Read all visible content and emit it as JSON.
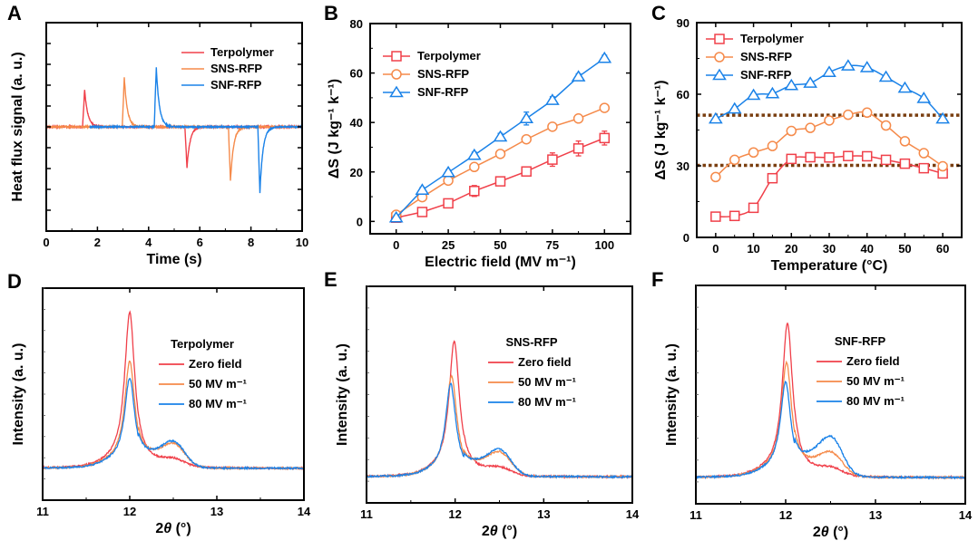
{
  "figure": {
    "colors": {
      "terpolymer": "#f0404a",
      "sns": "#f58a4a",
      "snf": "#1a82e8",
      "dotted": "#7a3f10",
      "axis": "#000000"
    }
  },
  "chart_data": [
    {
      "panel": "A",
      "type": "line",
      "title": "",
      "xlabel": "Time (s)",
      "ylabel": "Heat flux signal (a. u.)",
      "xlim": [
        0,
        10
      ],
      "ylim": [
        -1.0,
        1.0
      ],
      "xticks": [
        "0",
        "2",
        "4",
        "6",
        "8",
        "10"
      ],
      "yticks_labeled": false,
      "legend_position": "top-right",
      "series": [
        {
          "name": "Terpolymer",
          "color_key": "terpolymer",
          "baseline_start": 0,
          "peaks": [
            {
              "t": 1.5,
              "amp": 0.36
            },
            {
              "t": 5.5,
              "amp": -0.39
            }
          ]
        },
        {
          "name": "SNS-RFP",
          "color_key": "sns",
          "baseline_start": 0,
          "peaks": [
            {
              "t": 3.05,
              "amp": 0.47
            },
            {
              "t": 7.2,
              "amp": -0.52
            }
          ]
        },
        {
          "name": "SNF-RFP",
          "color_key": "snf",
          "baseline_start": 1.7,
          "peaks": [
            {
              "t": 4.3,
              "amp": 0.57
            },
            {
              "t": 8.35,
              "amp": -0.63
            }
          ]
        }
      ]
    },
    {
      "panel": "B",
      "type": "line",
      "title": "",
      "xlabel": "Electric field (MV m⁻¹)",
      "ylabel": "ΔS (J kg⁻¹ k⁻¹)",
      "xlim": [
        -12.5,
        112.5
      ],
      "ylim": [
        -5,
        80
      ],
      "xticks": [
        0,
        25,
        50,
        75,
        100
      ],
      "yticks": [
        0,
        20,
        40,
        60,
        80
      ],
      "legend_position": "top-left",
      "x": [
        0,
        12.5,
        25,
        37.5,
        50,
        62.5,
        75,
        87.5,
        100
      ],
      "series": [
        {
          "name": "Terpolymer",
          "marker": "square",
          "color_key": "terpolymer",
          "values": [
            1.5,
            3.8,
            7.3,
            12.3,
            16.2,
            20.2,
            25.0,
            29.5,
            33.7
          ],
          "errors": [
            0.5,
            0.8,
            0.8,
            2.2,
            0.8,
            0.8,
            2.7,
            3.0,
            2.8
          ]
        },
        {
          "name": "SNS-RFP",
          "marker": "circle",
          "color_key": "sns",
          "values": [
            2.7,
            9.8,
            16.5,
            22.0,
            27.3,
            33.2,
            38.3,
            41.6,
            45.9
          ],
          "errors": [
            0.4,
            0.6,
            0.6,
            0.6,
            0.6,
            0.6,
            0.6,
            0.6,
            0.6
          ]
        },
        {
          "name": "SNF-RFP",
          "marker": "triangle",
          "color_key": "snf",
          "values": [
            1.5,
            12.7,
            19.8,
            26.8,
            34.2,
            41.6,
            49.0,
            58.5,
            66.0
          ],
          "errors": [
            1.0,
            1.0,
            1.0,
            1.2,
            1.4,
            2.6,
            1.4,
            1.2,
            1.2
          ]
        }
      ]
    },
    {
      "panel": "C",
      "type": "line",
      "title": "",
      "xlabel": "Temperature (°C)",
      "ylabel": "ΔS (J kg⁻¹ k⁻¹)",
      "xlim": [
        -5,
        65
      ],
      "ylim": [
        0,
        90
      ],
      "xticks": [
        0,
        10,
        20,
        30,
        40,
        50,
        60
      ],
      "yticks": [
        0,
        30,
        60,
        90
      ],
      "legend_position": "top-left",
      "reference_lines": [
        51.2,
        30.2
      ],
      "x": [
        0,
        5,
        10,
        15,
        20,
        25,
        30,
        35,
        40,
        45,
        50,
        55,
        60
      ],
      "series": [
        {
          "name": "Terpolymer",
          "marker": "square",
          "color_key": "terpolymer",
          "values": [
            8.7,
            9.0,
            12.4,
            24.8,
            32.9,
            33.6,
            33.5,
            34.1,
            34.0,
            32.5,
            30.9,
            29.0,
            26.8
          ]
        },
        {
          "name": "SNS-RFP",
          "marker": "circle",
          "color_key": "sns",
          "values": [
            25.3,
            32.5,
            35.6,
            38.3,
            44.6,
            45.9,
            49.0,
            51.4,
            52.3,
            46.9,
            40.3,
            35.3,
            29.8
          ]
        },
        {
          "name": "SNF-RFP",
          "marker": "triangle",
          "color_key": "snf",
          "values": [
            49.7,
            53.9,
            59.6,
            60.3,
            63.7,
            64.7,
            69.2,
            71.9,
            71.2,
            67.2,
            62.6,
            58.3,
            49.7
          ]
        }
      ]
    },
    {
      "panel": "D",
      "type": "line",
      "title": "",
      "xlabel": "2θ (°)",
      "ylabel": "Intensity (a. u.)",
      "xlim": [
        11,
        14
      ],
      "ylim": [
        0,
        1.0
      ],
      "xticks": [
        11,
        12,
        13,
        14
      ],
      "yticks_labeled": false,
      "legend_title": "Terpolymer",
      "legend_position": "top-right",
      "series": [
        {
          "name": "Zero field",
          "color_key": "terpolymer",
          "peak_x": 12.0,
          "peak_height": 0.86,
          "shoulder_height": 0.03,
          "baseline": 0.15
        },
        {
          "name": "50 MV m⁻¹",
          "color_key": "sns",
          "peak_x": 12.0,
          "peak_height": 0.63,
          "shoulder_height": 0.09,
          "baseline": 0.15
        },
        {
          "name": "80 MV m⁻¹",
          "color_key": "snf",
          "peak_x": 12.0,
          "peak_height": 0.55,
          "shoulder_height": 0.1,
          "baseline": 0.15
        }
      ]
    },
    {
      "panel": "E",
      "type": "line",
      "title": "",
      "xlabel": "2θ (°)",
      "ylabel": "Intensity (a. u.)",
      "xlim": [
        11,
        14
      ],
      "ylim": [
        0,
        1.0
      ],
      "xticks": [
        11,
        12,
        13,
        14
      ],
      "yticks_labeled": false,
      "legend_title": "SNS-RFP",
      "legend_position": "top-right",
      "series": [
        {
          "name": "Zero field",
          "color_key": "terpolymer",
          "peak_x": 11.99,
          "peak_height": 0.72,
          "shoulder_height": 0.03,
          "baseline": 0.12
        },
        {
          "name": "50 MV m⁻¹",
          "color_key": "sns",
          "peak_x": 11.96,
          "peak_height": 0.56,
          "shoulder_height": 0.09,
          "baseline": 0.12
        },
        {
          "name": "80 MV m⁻¹",
          "color_key": "snf",
          "peak_x": 11.95,
          "peak_height": 0.52,
          "shoulder_height": 0.1,
          "baseline": 0.12
        }
      ]
    },
    {
      "panel": "F",
      "type": "line",
      "title": "",
      "xlabel": "2θ (°)",
      "ylabel": "Intensity (a. u.)",
      "xlim": [
        11,
        14
      ],
      "ylim": [
        0,
        1.0
      ],
      "xticks": [
        11,
        12,
        13,
        14
      ],
      "yticks_labeled": false,
      "legend_title": "SNF-RFP",
      "legend_position": "top-right",
      "series": [
        {
          "name": "Zero field",
          "color_key": "terpolymer",
          "peak_x": 12.02,
          "peak_height": 0.8,
          "shoulder_height": 0.03,
          "baseline": 0.12
        },
        {
          "name": "50 MV m⁻¹",
          "color_key": "sns",
          "peak_x": 12.01,
          "peak_height": 0.62,
          "shoulder_height": 0.09,
          "baseline": 0.12
        },
        {
          "name": "80 MV m⁻¹",
          "color_key": "snf",
          "peak_x": 12.0,
          "peak_height": 0.53,
          "shoulder_height": 0.15,
          "baseline": 0.12
        }
      ]
    }
  ]
}
